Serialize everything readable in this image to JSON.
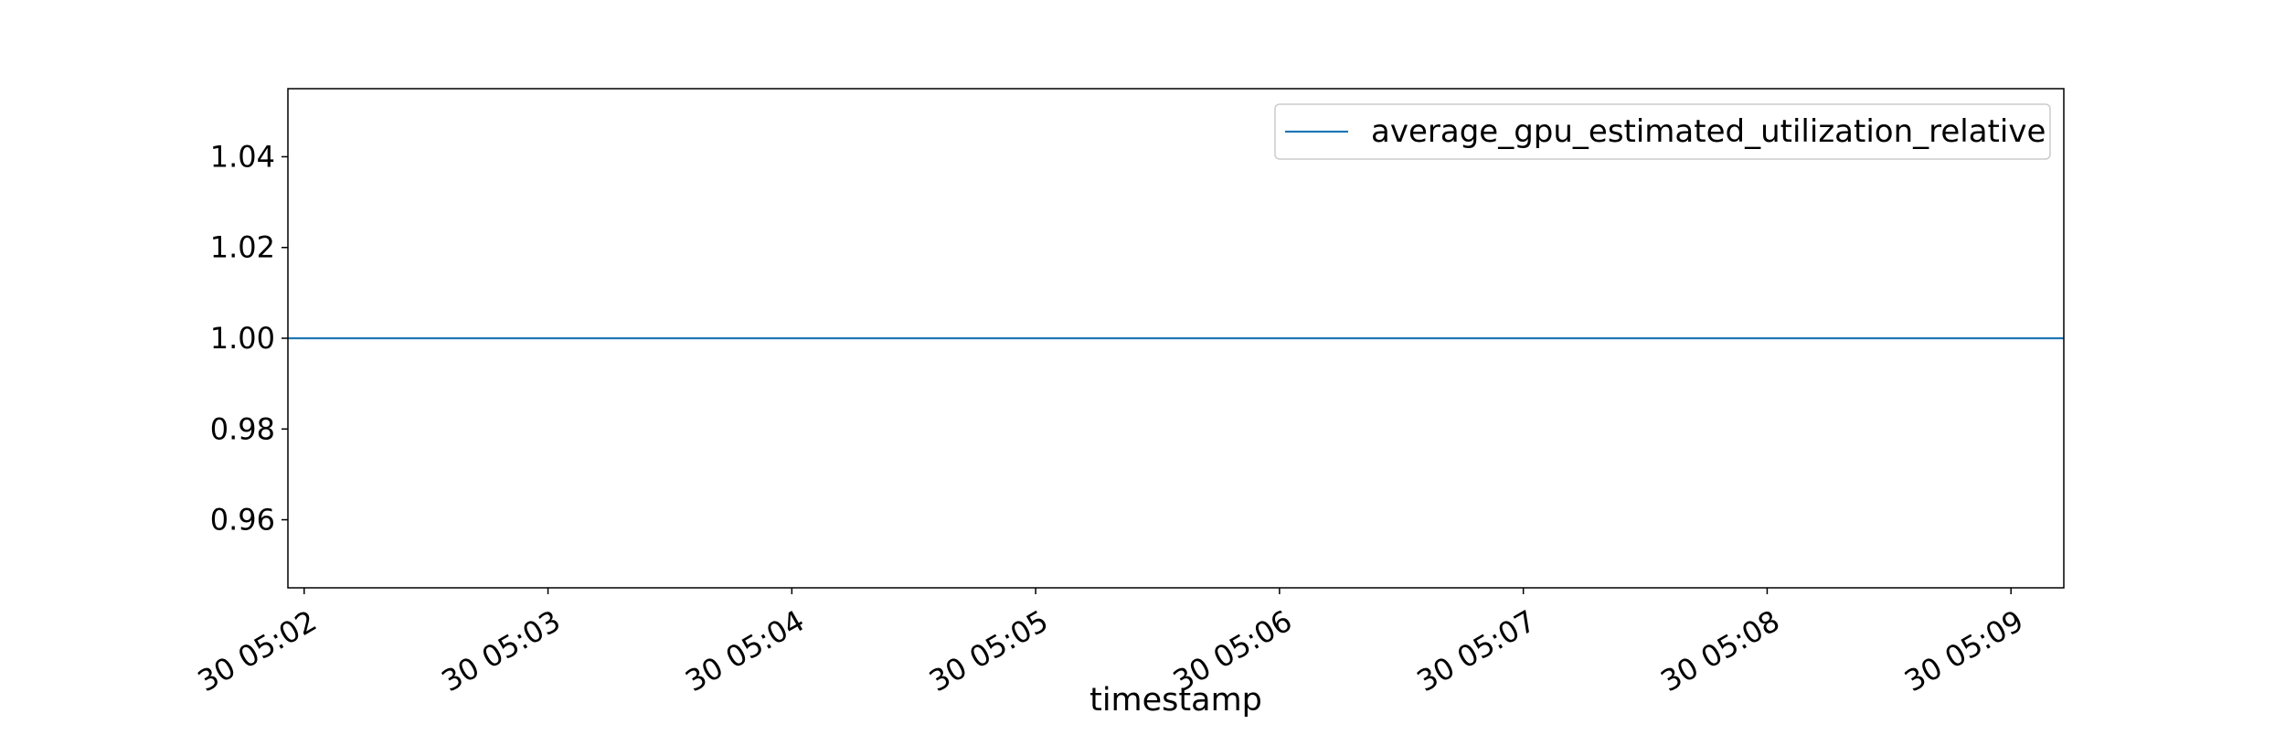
{
  "chart_data": {
    "type": "line",
    "title": "",
    "xlabel": "timestamp",
    "ylabel": "",
    "x_ticks": [
      "30 05:02",
      "30 05:03",
      "30 05:04",
      "30 05:05",
      "30 05:06",
      "30 05:07",
      "30 05:08",
      "30 05:09"
    ],
    "y_ticks": [
      "0.96",
      "0.98",
      "1.00",
      "1.02",
      "1.04"
    ],
    "xlim": [
      "30 05:01:56",
      "30 05:09:13"
    ],
    "ylim": [
      0.945,
      1.055
    ],
    "grid": false,
    "legend_position": "top-right",
    "series": [
      {
        "name": "average_gpu_estimated_utilization_relative",
        "color": "#1f77b4",
        "x": [
          "30 05:01:56",
          "30 05:09:13"
        ],
        "y": [
          1.0,
          1.0
        ]
      }
    ]
  }
}
